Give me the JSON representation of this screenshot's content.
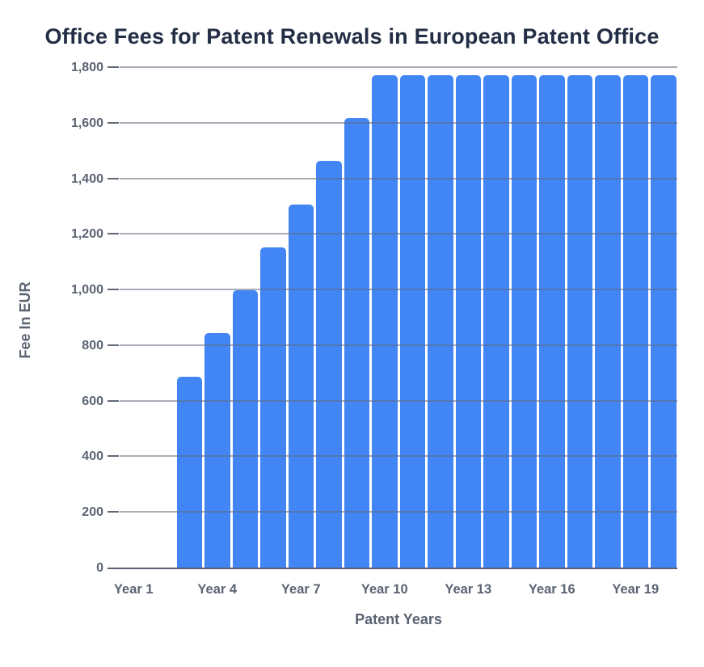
{
  "chart_data": {
    "type": "bar",
    "title": "Office Fees for Patent Renewals in European Patent Office",
    "xlabel": "Patent Years",
    "ylabel": "Fee In EUR",
    "categories": [
      "Year 1",
      "Year 2",
      "Year 3",
      "Year 4",
      "Year 5",
      "Year 6",
      "Year 7",
      "Year 8",
      "Year 9",
      "Year 10",
      "Year 11",
      "Year 12",
      "Year 13",
      "Year 14",
      "Year 15",
      "Year 16",
      "Year 17",
      "Year 18",
      "Year 19",
      "Year 20"
    ],
    "values": [
      0,
      0,
      690,
      845,
      1000,
      1155,
      1310,
      1465,
      1620,
      1775,
      1775,
      1775,
      1775,
      1775,
      1775,
      1775,
      1775,
      1775,
      1775,
      1775
    ],
    "x_tick_labels_shown": [
      "Year 1",
      "Year 4",
      "Year 7",
      "Year 10",
      "Year 13",
      "Year 16",
      "Year 19"
    ],
    "x_label_every_n": 3,
    "y_ticks": [
      0,
      200,
      400,
      600,
      800,
      1000,
      1200,
      1400,
      1600,
      1800
    ],
    "y_tick_labels": [
      "0",
      "200",
      "400",
      "600",
      "800",
      "1,000",
      "1,200",
      "1,400",
      "1,600",
      "1,800"
    ],
    "ylim": [
      0,
      1800
    ],
    "grid": true,
    "legend": "none",
    "colors": {
      "bar": "#4285f4",
      "title_text": "#232d45",
      "axis_text": "#5b6372",
      "gridline": "rgba(99,108,124,0.55)",
      "baseline": "#5a6271",
      "background": "#ffffff"
    }
  }
}
